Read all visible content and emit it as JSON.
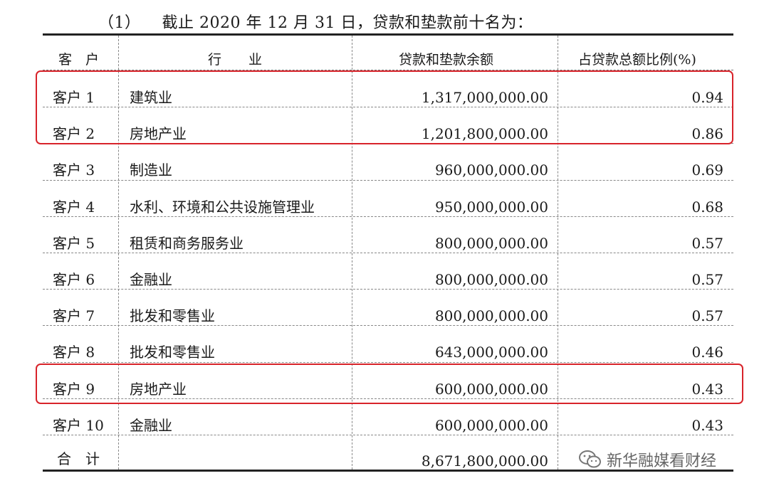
{
  "heading": {
    "number": "（1）",
    "text": "截止 2020 年 12 月 31 日，贷款和垫款前十名为："
  },
  "table": {
    "headers": {
      "client": "客　户",
      "industry": "行　　业",
      "amount": "贷款和垫款余额",
      "ratio": "占贷款总额比例(%)"
    },
    "rows": [
      {
        "client": "客户 1",
        "industry": "建筑业",
        "amount": "1,317,000,000.00",
        "ratio": "0.94"
      },
      {
        "client": "客户 2",
        "industry": "房地产业",
        "amount": "1,201,800,000.00",
        "ratio": "0.86"
      },
      {
        "client": "客户 3",
        "industry": "制造业",
        "amount": "960,000,000.00",
        "ratio": "0.69"
      },
      {
        "client": "客户 4",
        "industry": "水利、环境和公共设施管理业",
        "amount": "950,000,000.00",
        "ratio": "0.68"
      },
      {
        "client": "客户 5",
        "industry": "租赁和商务服务业",
        "amount": "800,000,000.00",
        "ratio": "0.57"
      },
      {
        "client": "客户 6",
        "industry": "金融业",
        "amount": "800,000,000.00",
        "ratio": "0.57"
      },
      {
        "client": "客户 7",
        "industry": "批发和零售业",
        "amount": "800,000,000.00",
        "ratio": "0.57"
      },
      {
        "client": "客户 8",
        "industry": "批发和零售业",
        "amount": "643,000,000.00",
        "ratio": "0.46"
      },
      {
        "client": "客户 9",
        "industry": "房地产业",
        "amount": "600,000,000.00",
        "ratio": "0.43"
      },
      {
        "client": "客户 10",
        "industry": "金融业",
        "amount": "600,000,000.00",
        "ratio": "0.43"
      }
    ],
    "total": {
      "label": "合　计",
      "amount": "8,671,800,000.00"
    }
  },
  "highlight_color": "#d8232a",
  "watermark": {
    "icon": "wechat-icon",
    "text": "新华融媒看财经"
  }
}
